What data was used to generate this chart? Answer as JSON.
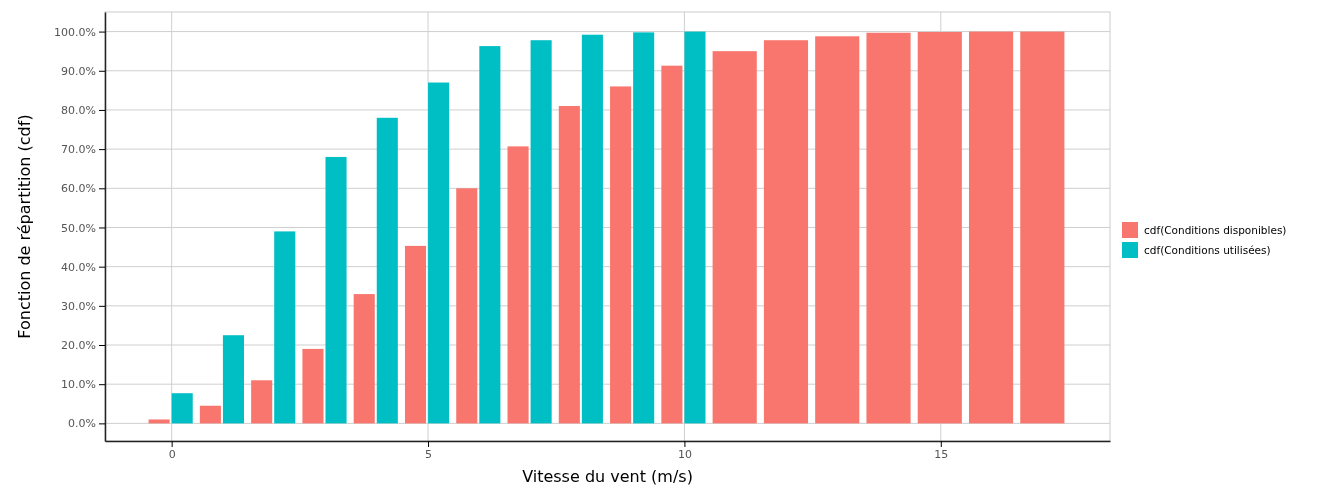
{
  "chart_data": {
    "type": "bar",
    "xlabel": "Vitesse du vent (m/s)",
    "ylabel": "Fonction de répartition (cdf)",
    "x": [
      0,
      1,
      2,
      3,
      4,
      5,
      6,
      7,
      8,
      9,
      10,
      11,
      12,
      13,
      14,
      15,
      16,
      17
    ],
    "series": [
      {
        "name": "cdf(Conditions disponibles)",
        "color": "#f8766d",
        "values": [
          1,
          4.5,
          11,
          19,
          33,
          45.3,
          60,
          70.7,
          81,
          86,
          91.3,
          95,
          97.8,
          98.8,
          99.7,
          99.9,
          100,
          100
        ]
      },
      {
        "name": "cdf(Conditions utilisées)",
        "color": "#00bfc4",
        "values": [
          7.7,
          22.5,
          49,
          68,
          78,
          87,
          96.3,
          97.8,
          99.2,
          99.8,
          100,
          null,
          null,
          null,
          null,
          null,
          null,
          null
        ]
      }
    ],
    "xlim": [
      -1.3,
      18.3
    ],
    "xticks": [
      0,
      5,
      10,
      15
    ],
    "ylim": [
      -4.5,
      105
    ],
    "yticks": [
      {
        "value": 0,
        "label": "0.0%"
      },
      {
        "value": 10,
        "label": "10.0%"
      },
      {
        "value": 20,
        "label": "20.0%"
      },
      {
        "value": 30,
        "label": "30.0%"
      },
      {
        "value": 40,
        "label": "40.0%"
      },
      {
        "value": 50,
        "label": "50.0%"
      },
      {
        "value": 60,
        "label": "60.0%"
      },
      {
        "value": 70,
        "label": "70.0%"
      },
      {
        "value": 80,
        "label": "80.0%"
      },
      {
        "value": 90,
        "label": "90.0%"
      },
      {
        "value": 100,
        "label": "100.0%"
      }
    ],
    "grid": true,
    "legend": "right"
  }
}
